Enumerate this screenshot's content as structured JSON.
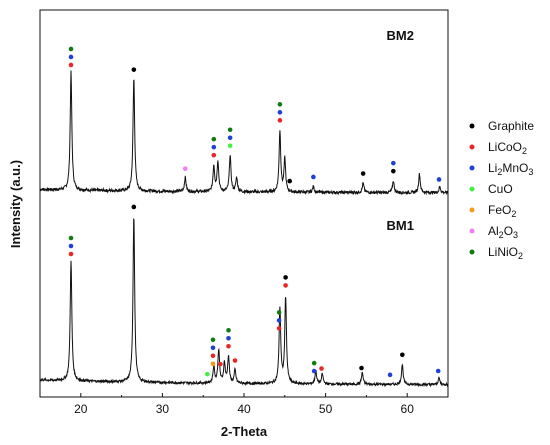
{
  "chart_data": {
    "type": "line",
    "xlabel": "2-Theta",
    "ylabel": "Intensity (a.u.)",
    "xlim": [
      15,
      65
    ],
    "xticks": [
      "20",
      "30",
      "40",
      "50",
      "60"
    ],
    "yticks_visible": false,
    "grid": false,
    "legend_position": "right",
    "phases": [
      {
        "key": "graphite",
        "name": "Graphite",
        "color": "#000000"
      },
      {
        "key": "licoo2",
        "name": "LiCoO",
        "sub": "2",
        "color": "#e8262a"
      },
      {
        "key": "li2mno3",
        "name": "Li",
        "sub": "2",
        "name2": "MnO",
        "sub2": "3",
        "color": "#1f3fd6"
      },
      {
        "key": "cuo",
        "name": "CuO",
        "color": "#44ee44"
      },
      {
        "key": "feo2",
        "name": "FeO",
        "sub": "2",
        "color": "#f39a1d"
      },
      {
        "key": "al2o3",
        "name": "Al",
        "sub": "2",
        "name2": "O",
        "sub2": "3",
        "color": "#f07ff0"
      },
      {
        "key": "linio2",
        "name": "LiNiO",
        "sub": "2",
        "color": "#137a13"
      }
    ],
    "series": [
      {
        "name": "BM2",
        "baseline_y": 0.08,
        "peaks": [
          {
            "x": 18.8,
            "h": 1.0
          },
          {
            "x": 26.5,
            "h": 0.96
          },
          {
            "x": 32.8,
            "h": 0.12
          },
          {
            "x": 36.3,
            "h": 0.22
          },
          {
            "x": 36.8,
            "h": 0.26
          },
          {
            "x": 38.3,
            "h": 0.31
          },
          {
            "x": 39.1,
            "h": 0.12
          },
          {
            "x": 44.4,
            "h": 0.52
          },
          {
            "x": 45.0,
            "h": 0.28
          },
          {
            "x": 48.5,
            "h": 0.05
          },
          {
            "x": 54.6,
            "h": 0.08
          },
          {
            "x": 58.3,
            "h": 0.1
          },
          {
            "x": 61.5,
            "h": 0.16
          },
          {
            "x": 64.0,
            "h": 0.05
          }
        ],
        "markers": [
          {
            "x": 18.8,
            "phases": [
              "linio2",
              "li2mno3",
              "licoo2"
            ]
          },
          {
            "x": 26.5,
            "phases": [
              "graphite"
            ]
          },
          {
            "x": 32.8,
            "phases": [
              "al2o3"
            ]
          },
          {
            "x": 36.3,
            "phases": [
              "linio2",
              "li2mno3",
              "licoo2"
            ]
          },
          {
            "x": 38.3,
            "phases": [
              "linio2",
              "li2mno3",
              "cuo"
            ]
          },
          {
            "x": 44.4,
            "phases": [
              "linio2",
              "li2mno3",
              "licoo2"
            ]
          },
          {
            "x": 45.6,
            "phases": [
              "graphite"
            ]
          },
          {
            "x": 48.5,
            "phases": [
              "li2mno3"
            ]
          },
          {
            "x": 54.6,
            "phases": [
              "graphite"
            ]
          },
          {
            "x": 58.3,
            "phases": [
              "li2mno3",
              "graphite"
            ]
          },
          {
            "x": 63.9,
            "phases": [
              "li2mno3"
            ]
          }
        ]
      },
      {
        "name": "BM1",
        "baseline_y": 0.08,
        "peaks": [
          {
            "x": 18.8,
            "h": 0.72
          },
          {
            "x": 26.5,
            "h": 1.0
          },
          {
            "x": 36.3,
            "h": 0.1
          },
          {
            "x": 36.9,
            "h": 0.2
          },
          {
            "x": 37.6,
            "h": 0.12
          },
          {
            "x": 38.1,
            "h": 0.16
          },
          {
            "x": 38.9,
            "h": 0.08
          },
          {
            "x": 44.4,
            "h": 0.45
          },
          {
            "x": 45.1,
            "h": 0.52
          },
          {
            "x": 48.8,
            "h": 0.08
          },
          {
            "x": 49.6,
            "h": 0.06
          },
          {
            "x": 54.5,
            "h": 0.07
          },
          {
            "x": 59.4,
            "h": 0.12
          },
          {
            "x": 63.9,
            "h": 0.04
          }
        ],
        "markers": [
          {
            "x": 18.8,
            "phases": [
              "linio2",
              "li2mno3",
              "licoo2"
            ]
          },
          {
            "x": 26.5,
            "phases": [
              "graphite"
            ]
          },
          {
            "x": 35.5,
            "phases": [
              "cuo"
            ]
          },
          {
            "x": 36.2,
            "phases": [
              "linio2",
              "li2mno3",
              "licoo2",
              "feo2"
            ]
          },
          {
            "x": 37.1,
            "phases": [
              "licoo2"
            ]
          },
          {
            "x": 38.1,
            "phases": [
              "linio2",
              "li2mno3",
              "licoo2"
            ]
          },
          {
            "x": 38.9,
            "phases": [
              "licoo2"
            ]
          },
          {
            "x": 44.3,
            "phases": [
              "linio2",
              "li2mno3",
              "licoo2"
            ]
          },
          {
            "x": 45.1,
            "phases": [
              "graphite",
              "licoo2"
            ]
          },
          {
            "x": 48.6,
            "phases": [
              "linio2",
              "li2mno3"
            ]
          },
          {
            "x": 49.5,
            "phases": [
              "licoo2"
            ]
          },
          {
            "x": 54.4,
            "phases": [
              "graphite"
            ]
          },
          {
            "x": 57.9,
            "phases": [
              "li2mno3"
            ]
          },
          {
            "x": 59.4,
            "phases": [
              "graphite"
            ]
          },
          {
            "x": 63.8,
            "phases": [
              "li2mno3"
            ]
          }
        ]
      }
    ]
  }
}
